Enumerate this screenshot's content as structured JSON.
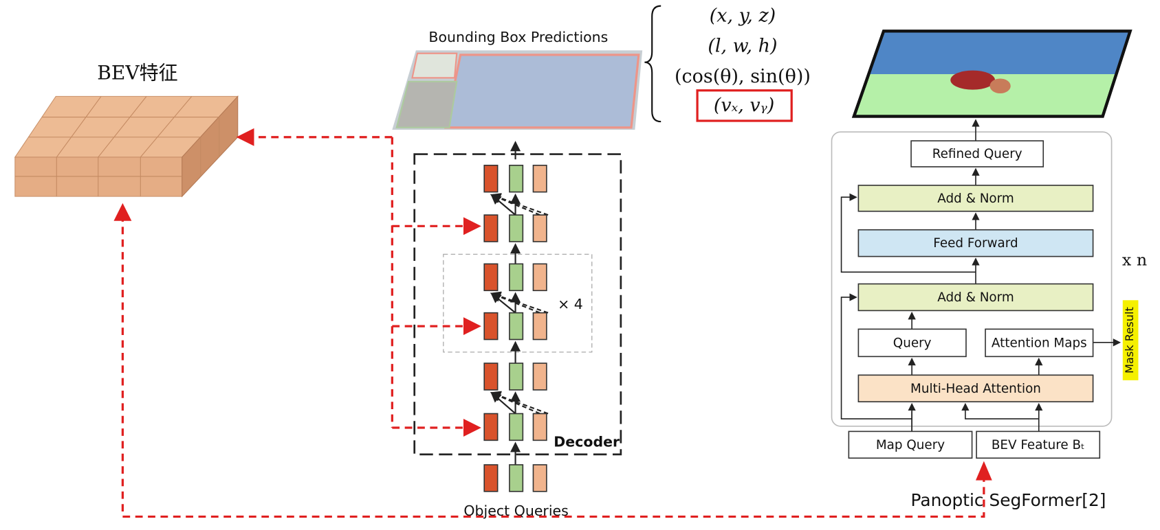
{
  "bev_label": "BEV特征",
  "detr": {
    "title": "Bounding Box Predictions",
    "outputs": [
      "(x, y, z)",
      "(l, w, h)",
      "(cos(θ), sin(θ))",
      "(vₓ, vᵧ)"
    ],
    "repeat": "× 4",
    "decoder": "Decoder",
    "queries": "Object Queries"
  },
  "segformer": {
    "refined": "Refined Query",
    "add_norm_top": "Add & Norm",
    "feed_forward": "Feed Forward",
    "add_norm_bottom": "Add & Norm",
    "query": "Query",
    "attention_maps": "Attention Maps",
    "mha": "Multi-Head Attention",
    "map_query": "Map Query",
    "bev_feature": "BEV Feature Bₜ",
    "repeat": "x n",
    "mask_result": "Mask Result",
    "caption": "Panoptic SegFormer[2]"
  }
}
